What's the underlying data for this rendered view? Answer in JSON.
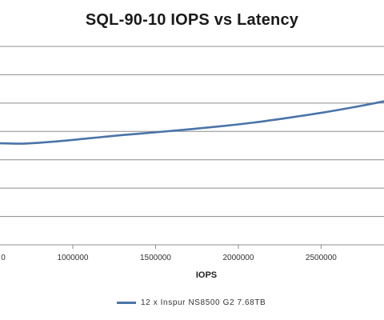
{
  "chart_data": {
    "type": "line",
    "title": "SQL-90-10  IOPS vs Latency",
    "xlabel": "IOPS",
    "ylabel": "",
    "x_ticks": [
      1000000,
      1500000,
      2000000,
      2500000
    ],
    "x_tick_labels": [
      "1000000",
      "1500000",
      "2000000",
      "2500000"
    ],
    "visible_x_tick_fragment": "0",
    "xlim": [
      560000,
      2880000
    ],
    "ylim": [
      0,
      1
    ],
    "grid": true,
    "legend_position": "bottom",
    "series": [
      {
        "name": "12 x Inspur NS8500 G2 7.68TB",
        "color": "#4a74a8",
        "x": [
          560000,
          700000,
          900000,
          1100000,
          1300000,
          1500000,
          1700000,
          1900000,
          2100000,
          2300000,
          2500000,
          2700000,
          2880000
        ],
        "y": [
          0.512,
          0.51,
          0.521,
          0.537,
          0.553,
          0.567,
          0.582,
          0.598,
          0.617,
          0.64,
          0.665,
          0.694,
          0.723
        ]
      }
    ]
  }
}
